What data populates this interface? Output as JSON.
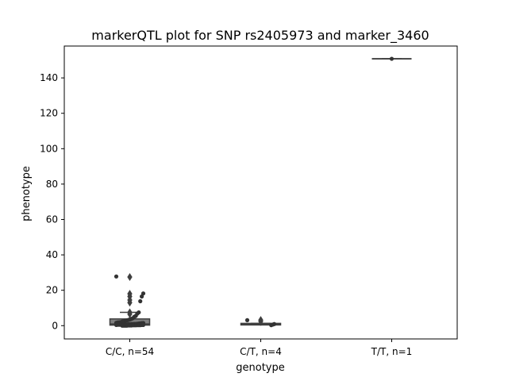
{
  "chart_data": {
    "type": "box",
    "title": "markerQTL plot for SNP rs2405973 and marker_3460",
    "xlabel": "genotype",
    "ylabel": "phenotype",
    "categories": [
      "C/C, n=54",
      "C/T, n=4",
      "T/T, n=1"
    ],
    "ylim": [
      -7.5,
      158
    ],
    "yticks": [
      0,
      20,
      40,
      60,
      80,
      100,
      120,
      140
    ],
    "grid": false,
    "box_color": "#3f3f3f",
    "point_color": "#333333",
    "boxes": [
      {
        "category": "C/C, n=54",
        "q1": 0.3,
        "median": 0.9,
        "q3": 3.8,
        "whisker_low": 0.0,
        "whisker_high": 7.5,
        "outliers": [
          27.5,
          18.0,
          16.5,
          14.5,
          13.0,
          7.5,
          6.5
        ]
      },
      {
        "category": "C/T, n=4",
        "q1": 0.4,
        "median": 0.8,
        "q3": 1.3,
        "whisker_low": 0.0,
        "whisker_high": 1.3,
        "outliers": [
          3.2,
          2.4
        ]
      },
      {
        "category": "T/T, n=1",
        "q1": 150.8,
        "median": 150.8,
        "q3": 150.8,
        "whisker_low": 150.8,
        "whisker_high": 150.8,
        "outliers": []
      }
    ],
    "points": [
      {
        "category": "C/C, n=54",
        "values": [
          27.8,
          18.2,
          16.5,
          13.8,
          7.5,
          6.8,
          5.5,
          5.0,
          4.2,
          3.8,
          3.5,
          3.2,
          3.0,
          2.8,
          2.5,
          2.3,
          2.0,
          1.9,
          1.8,
          1.6,
          1.5,
          1.4,
          1.3,
          1.2,
          1.1,
          1.0,
          1.0,
          0.9,
          0.9,
          0.8,
          0.8,
          0.7,
          0.7,
          0.6,
          0.6,
          0.5,
          0.5,
          0.5,
          0.4,
          0.4,
          0.4,
          0.3,
          0.3,
          0.3,
          0.2,
          0.2,
          0.2,
          0.1,
          0.1,
          0.1,
          0.0,
          0.0,
          0.0,
          0.0
        ]
      },
      {
        "category": "C/T, n=4",
        "values": [
          3.1,
          0.9,
          0.6,
          0.3
        ]
      },
      {
        "category": "T/T, n=1",
        "values": [
          150.8
        ]
      }
    ]
  }
}
